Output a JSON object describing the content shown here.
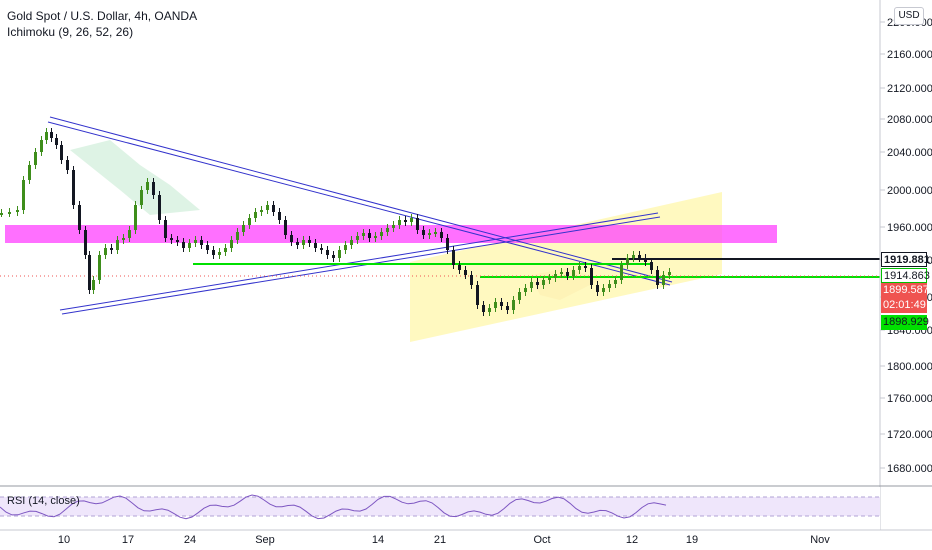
{
  "header": {
    "symbol_title": "Gold Spot / U.S. Dollar, 4h, OANDA",
    "indicator": "Ichimoku (9, 26, 52, 26)"
  },
  "currency_button": "USD",
  "price_axis": {
    "ticks": [
      "2200.000",
      "2160.000",
      "2120.000",
      "2080.000",
      "2040.000",
      "2000.000",
      "1960.000",
      "1920.000",
      "1880.000",
      "1840.000",
      "1800.000",
      "1760.000",
      "1720.000",
      "1680.000"
    ]
  },
  "price_tags": {
    "black_line": "1919.881",
    "green_line": "1914.863",
    "last_price": "1899.587",
    "countdown": "02:01:49",
    "green_bottom": "1898.929"
  },
  "time_axis": {
    "labels": [
      "10",
      "17",
      "24",
      "Sep",
      "14",
      "21",
      "Oct",
      "12",
      "19",
      "Nov"
    ]
  },
  "rsi_panel": {
    "label": "RSI (14, close)"
  },
  "colors": {
    "bull": "#26a69a",
    "bear": "#ef5350",
    "candle_dark": "#131722",
    "candle_green": "#3e8e1b",
    "magenta_zone": "#ff40ff",
    "yellow_channel": "#fff7b0",
    "trendline": "#3333cc",
    "green_line": "#00e000",
    "rsi_line": "#7e57c2"
  }
}
